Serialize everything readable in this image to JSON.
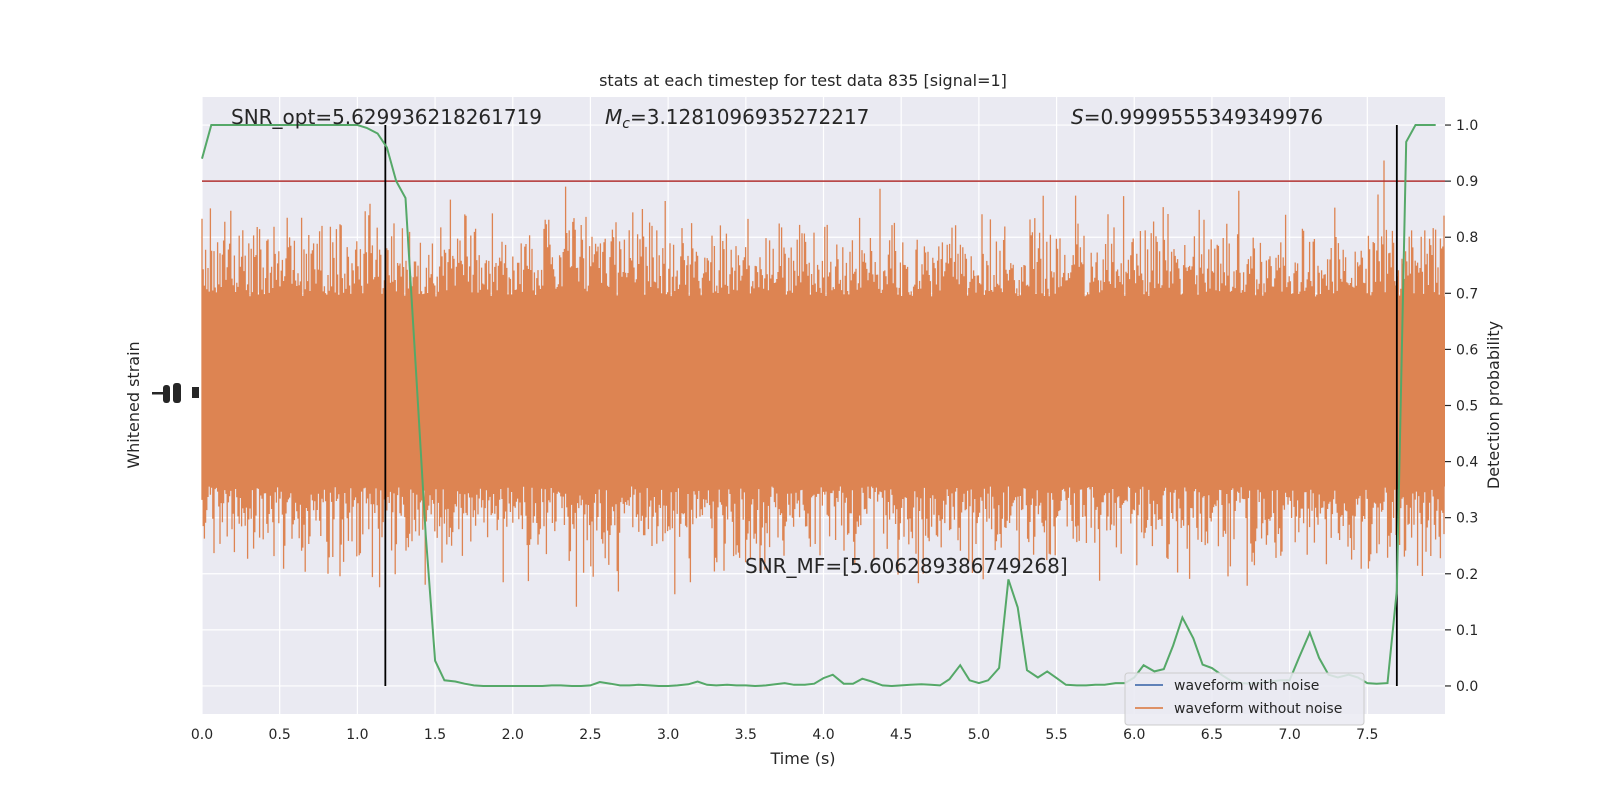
{
  "chart_data": {
    "type": "line",
    "title": "stats at each timestep for test data 835 [signal=1]",
    "xlabel": "Time (s)",
    "ylabel_left": "Whitened strain",
    "ylabel_right": "Detection probability",
    "xlim": [
      0,
      8
    ],
    "ylim_right": [
      -0.05,
      1.05
    ],
    "x_ticks": [
      0.0,
      0.5,
      1.0,
      1.5,
      2.0,
      2.5,
      3.0,
      3.5,
      4.0,
      4.5,
      5.0,
      5.5,
      6.0,
      6.5,
      7.0,
      7.5
    ],
    "x_tick_labels": [
      "0.0",
      "0.5",
      "1.0",
      "1.5",
      "2.0",
      "2.5",
      "3.0",
      "3.5",
      "4.0",
      "4.5",
      "5.0",
      "5.5",
      "6.0",
      "6.5",
      "7.0",
      "7.5"
    ],
    "y_right_ticks": [
      0.0,
      0.1,
      0.2,
      0.3,
      0.4,
      0.5,
      0.6,
      0.7,
      0.8,
      0.9,
      1.0
    ],
    "y_right_tick_labels": [
      "0.0",
      "0.1",
      "0.2",
      "0.3",
      "0.4",
      "0.5",
      "0.6",
      "0.7",
      "0.8",
      "0.9",
      "1.0"
    ],
    "grid": true,
    "legend_placement": "lower-right",
    "threshold": 0.9,
    "vlines_x": [
      1.18,
      7.69
    ],
    "annotations": {
      "snr_opt": "SNR_opt=5.629936218261719",
      "mc_symbol": "M",
      "mc_subscript": "c",
      "mc_value": "=3.1281096935272217",
      "s_symbol": "S",
      "s_value": "=0.9999555349349976",
      "snr_mf": "SNR_MF=[5.606289386749268]"
    },
    "series": [
      {
        "name": "waveform with noise",
        "color": "#4c72b0"
      },
      {
        "name": "waveform without noise",
        "color": "#dd8452"
      },
      {
        "color": "#55a868",
        "x": [
          0.0,
          0.06,
          0.13,
          0.19,
          0.25,
          0.31,
          0.38,
          0.44,
          0.5,
          0.56,
          0.63,
          0.69,
          0.75,
          0.81,
          0.88,
          0.94,
          1.0,
          1.06,
          1.13,
          1.19,
          1.25,
          1.31,
          1.38,
          1.44,
          1.5,
          1.56,
          1.63,
          1.69,
          1.75,
          1.81,
          1.88,
          1.94,
          2.0,
          2.06,
          2.13,
          2.19,
          2.25,
          2.31,
          2.38,
          2.44,
          2.5,
          2.56,
          2.63,
          2.69,
          2.75,
          2.81,
          2.88,
          2.94,
          3.0,
          3.06,
          3.13,
          3.19,
          3.25,
          3.31,
          3.38,
          3.44,
          3.5,
          3.56,
          3.63,
          3.69,
          3.75,
          3.81,
          3.88,
          3.94,
          4.0,
          4.06,
          4.13,
          4.19,
          4.25,
          4.31,
          4.38,
          4.44,
          4.5,
          4.56,
          4.63,
          4.69,
          4.75,
          4.81,
          4.88,
          4.94,
          5.0,
          5.06,
          5.13,
          5.19,
          5.25,
          5.31,
          5.38,
          5.44,
          5.5,
          5.56,
          5.63,
          5.69,
          5.75,
          5.81,
          5.88,
          5.94,
          6.0,
          6.06,
          6.13,
          6.19,
          6.25,
          6.31,
          6.38,
          6.44,
          6.5,
          6.56,
          6.63,
          6.69,
          6.75,
          6.81,
          6.88,
          6.94,
          7.0,
          7.06,
          7.13,
          7.19,
          7.25,
          7.31,
          7.38,
          7.44,
          7.5,
          7.56,
          7.63,
          7.69,
          7.75,
          7.81,
          7.88,
          7.94
        ],
        "values": [
          0.94,
          1.0,
          1.0,
          1.0,
          1.0,
          1.0,
          1.0,
          1.0,
          1.0,
          1.0,
          1.0,
          1.0,
          1.0,
          1.0,
          1.0,
          1.0,
          1.0,
          0.995,
          0.985,
          0.96,
          0.9,
          0.87,
          0.55,
          0.27,
          0.045,
          0.01,
          0.008,
          0.004,
          0.001,
          0.0,
          0.0,
          0.0,
          0.0,
          0.0,
          0.0,
          0.0,
          0.001,
          0.001,
          0.0,
          0.0,
          0.001,
          0.007,
          0.004,
          0.001,
          0.001,
          0.002,
          0.001,
          0.0,
          0.0,
          0.001,
          0.003,
          0.008,
          0.002,
          0.001,
          0.002,
          0.001,
          0.001,
          0.0,
          0.001,
          0.003,
          0.005,
          0.002,
          0.002,
          0.004,
          0.014,
          0.02,
          0.004,
          0.004,
          0.013,
          0.008,
          0.001,
          0.0,
          0.001,
          0.002,
          0.003,
          0.002,
          0.001,
          0.012,
          0.037,
          0.01,
          0.005,
          0.01,
          0.032,
          0.19,
          0.14,
          0.028,
          0.015,
          0.026,
          0.014,
          0.002,
          0.001,
          0.001,
          0.002,
          0.002,
          0.005,
          0.005,
          0.015,
          0.037,
          0.026,
          0.03,
          0.072,
          0.122,
          0.085,
          0.038,
          0.032,
          0.02,
          0.008,
          0.005,
          0.004,
          0.005,
          0.008,
          0.01,
          0.01,
          0.05,
          0.095,
          0.05,
          0.02,
          0.015,
          0.02,
          0.015,
          0.005,
          0.004,
          0.005,
          0.17,
          0.97,
          1.0,
          1.0,
          1.0
        ]
      }
    ]
  }
}
